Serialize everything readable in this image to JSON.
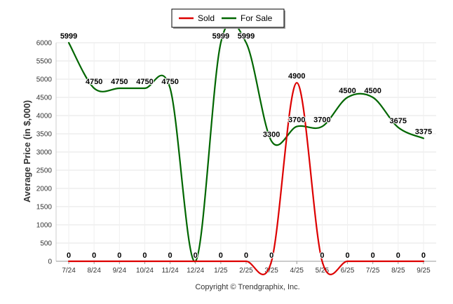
{
  "chart_data": {
    "type": "line",
    "ylabel": "Average Price (in $,000)",
    "xlabel": "",
    "ylim": [
      0,
      6000
    ],
    "yticks": [
      0,
      500,
      1000,
      1500,
      2000,
      2500,
      3000,
      3500,
      4000,
      4500,
      5000,
      5500,
      6000
    ],
    "categories": [
      "7/24",
      "8/24",
      "9/24",
      "10/24",
      "11/24",
      "12/24",
      "1/25",
      "2/25",
      "3/25",
      "4/25",
      "5/25",
      "6/25",
      "7/25",
      "8/25",
      "9/25"
    ],
    "grid": true,
    "legend_position": "top-center",
    "series": [
      {
        "name": "Sold",
        "color": "#dd0000",
        "values": [
          0,
          0,
          0,
          0,
          0,
          0,
          0,
          0,
          0,
          4900,
          0,
          0,
          0,
          0,
          0
        ],
        "labels": [
          "0",
          "0",
          "0",
          "0",
          "0",
          "0",
          "0",
          "0",
          "0",
          "4900",
          "0",
          "0",
          "0",
          "0",
          "0"
        ]
      },
      {
        "name": "For Sale",
        "color": "#006600",
        "values": [
          5999,
          4750,
          4750,
          4750,
          4750,
          0,
          5999,
          5999,
          3300,
          3700,
          3700,
          4500,
          4500,
          3675,
          3375
        ],
        "labels": [
          "5999",
          "4750",
          "4750",
          "4750",
          "4750",
          "",
          "5999",
          "5999",
          "3300",
          "3700",
          "3700",
          "4500",
          "4500",
          "3675",
          "3375"
        ]
      }
    ]
  },
  "footer": {
    "copyright": "Copyright © Trendgraphix, Inc."
  }
}
